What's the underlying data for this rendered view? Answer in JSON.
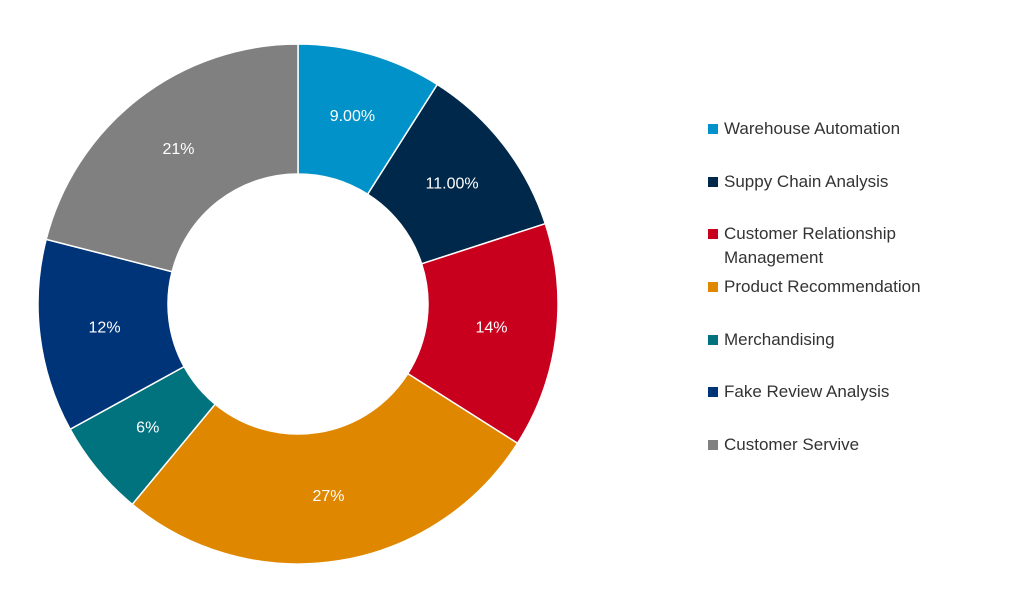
{
  "chart_data": {
    "type": "donut",
    "categories": [
      "Warehouse Automation",
      "Suppy Chain Analysis",
      "Customer Relationship Management",
      "Product Recommendation",
      "Merchandising",
      "Fake Review Analysis",
      "Customer Servive"
    ],
    "values": [
      9,
      11,
      14,
      27,
      6,
      12,
      21
    ],
    "value_labels": [
      "9.00%",
      "11.00%",
      "14%",
      "27%",
      "6%",
      "12%",
      "21%"
    ],
    "colors": [
      "#0092c8",
      "#00284a",
      "#c8001e",
      "#e08700",
      "#00737f",
      "#003479",
      "#808080"
    ],
    "legend": "right"
  }
}
